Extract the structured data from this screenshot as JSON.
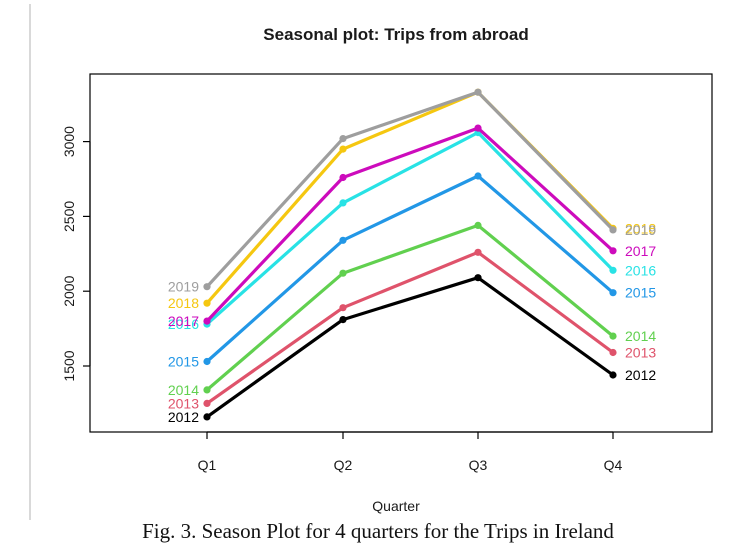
{
  "chart_data": {
    "type": "line",
    "title": "Seasonal plot: Trips from abroad",
    "xlabel": "Quarter",
    "ylabel": "",
    "categories": [
      "Q1",
      "Q2",
      "Q3",
      "Q4"
    ],
    "ylim": [
      1200,
      3350
    ],
    "yticks": [
      1500,
      2000,
      2500,
      3000
    ],
    "grid": false,
    "series": [
      {
        "name": "2012",
        "color": "#000000",
        "values": [
          1160,
          1810,
          2090,
          1440
        ]
      },
      {
        "name": "2013",
        "color": "#df536b",
        "values": [
          1250,
          1890,
          2260,
          1590
        ]
      },
      {
        "name": "2014",
        "color": "#61d04f",
        "values": [
          1340,
          2120,
          2440,
          1700
        ]
      },
      {
        "name": "2015",
        "color": "#2297e6",
        "values": [
          1530,
          2340,
          2770,
          1990
        ]
      },
      {
        "name": "2016",
        "color": "#28e2e5",
        "values": [
          1780,
          2590,
          3060,
          2140
        ]
      },
      {
        "name": "2017",
        "color": "#cd0bbc",
        "values": [
          1800,
          2760,
          3090,
          2270
        ]
      },
      {
        "name": "2018",
        "color": "#f5c710",
        "values": [
          1920,
          2950,
          3330,
          2420
        ]
      },
      {
        "name": "2019",
        "color": "#9e9e9e",
        "values": [
          2030,
          3020,
          3330,
          2410
        ]
      }
    ]
  },
  "caption": "Fig. 3. Season Plot for 4 quarters for the Trips in Ireland"
}
